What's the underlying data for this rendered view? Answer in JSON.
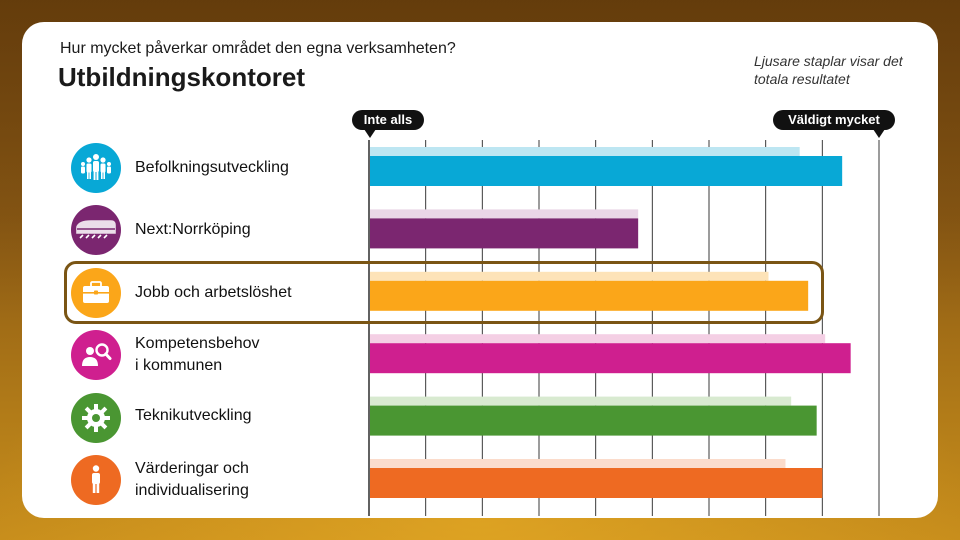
{
  "header": {
    "question": "Hur mycket påverkar området den egna verksamheten?",
    "office": "Utbildningskontoret",
    "note": "Ljusare staplar visar det totala resultatet"
  },
  "scale": {
    "left_label": "Inte alls",
    "right_label": "Väldigt mycket"
  },
  "chart_data": {
    "type": "bar",
    "orientation": "horizontal",
    "title": "Hur mycket påverkar området den egna verksamheten?",
    "subtitle": "Utbildningskontoret",
    "xlim": [
      0,
      9
    ],
    "grid": true,
    "categories": [
      "Befolkningsutveckling",
      "Next:Norrköping",
      "Jobb och arbetslöshet",
      "Kompetensbehov i kommunen",
      "Teknikutveckling",
      "Värderingar och individualisering"
    ],
    "series": [
      {
        "name": "Totalt resultat",
        "style": "light",
        "values": [
          7.6,
          4.75,
          7.05,
          8.05,
          7.45,
          7.35
        ]
      },
      {
        "name": "Utbildningskontoret",
        "style": "dark",
        "values": [
          8.35,
          4.75,
          7.75,
          8.5,
          7.9,
          8.0
        ]
      }
    ],
    "highlighted_category": "Jobb och arbetslöshet"
  },
  "rows": [
    {
      "label": "Befolkningsutveckling",
      "icon": "people-icon",
      "dark": "#08a8d6",
      "light": "#bde6f2"
    },
    {
      "label": "Next:Norrköping",
      "icon": "train-icon",
      "dark": "#7b2670",
      "light": "#ead6e7"
    },
    {
      "label": "Jobb och arbetslöshet",
      "icon": "briefcase-icon",
      "dark": "#fba619",
      "light": "#fde3b8"
    },
    {
      "label": "Kompetensbehov\ni kommunen",
      "icon": "person-search-icon",
      "dark": "#cf1f8f",
      "light": "#f4cfe4"
    },
    {
      "label": "Teknikutveckling",
      "icon": "gear-icon",
      "dark": "#4a9632",
      "light": "#d8ead0"
    },
    {
      "label": "Värderingar och\nindividualisering",
      "icon": "person-icon",
      "dark": "#ee6a22",
      "light": "#fbdccc"
    }
  ]
}
